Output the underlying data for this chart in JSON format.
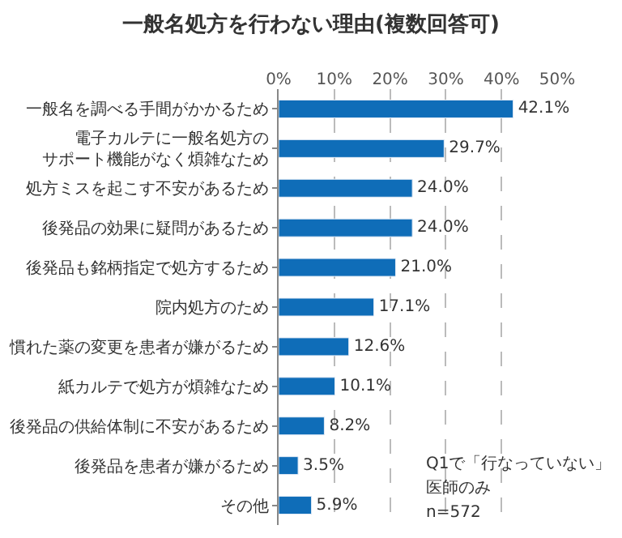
{
  "chart_data": {
    "type": "bar",
    "orientation": "horizontal",
    "title": "一般名処方を行わない理由(複数回答可)",
    "categories": [
      "一般名を調べる手間がかかるため",
      "電子カルテに一般名処方のサポート機能がなく煩雑なため",
      "処方ミスを起こす不安があるため",
      "後発品の効果に疑問があるため",
      "後発品も銘柄指定で処方するため",
      "院内処方のため",
      "慣れた薬の変更を患者が嫌がるため",
      "紙カルテで処方が煩雑なため",
      "後発品の供給体制に不安があるため",
      "後発品を患者が嫌がるため",
      "その他"
    ],
    "values": [
      42.1,
      29.7,
      24.0,
      24.0,
      21.0,
      17.1,
      12.6,
      10.1,
      8.2,
      3.5,
      5.9
    ],
    "value_labels": [
      "42.1%",
      "29.7%",
      "24.0%",
      "24.0%",
      "21.0%",
      "17.1%",
      "12.6%",
      "10.1%",
      "8.2%",
      "3.5%",
      "5.9%"
    ],
    "color": "#0f6db8",
    "xlim": [
      0,
      50
    ],
    "xticks": [
      {
        "value": 0,
        "label": "0%"
      },
      {
        "value": 10,
        "label": "10%"
      },
      {
        "value": 20,
        "label": "20%"
      },
      {
        "value": 30,
        "label": "30%"
      },
      {
        "value": 40,
        "label": "40%"
      },
      {
        "value": 50,
        "label": "50%"
      }
    ],
    "grid": "x",
    "annotations": [
      "Q1で「行なっていない」",
      "医師のみ",
      "n=572"
    ]
  }
}
